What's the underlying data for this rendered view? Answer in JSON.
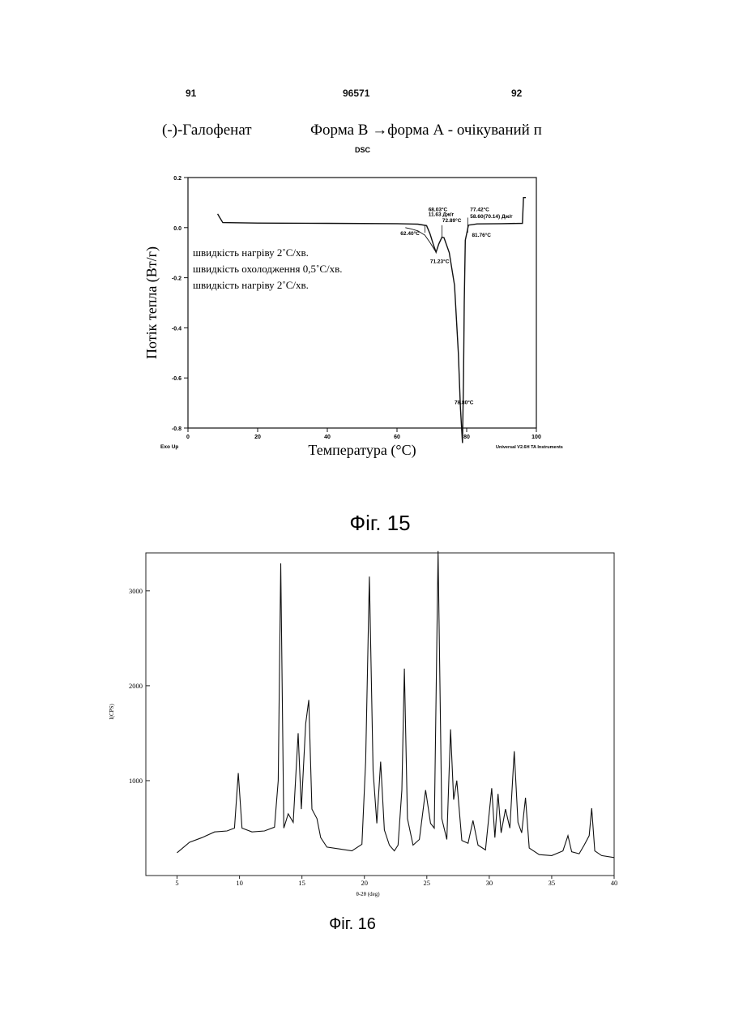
{
  "header": {
    "page_left": "91",
    "patent_number": "96571",
    "page_right": "92"
  },
  "chart_data": [
    {
      "type": "line",
      "title_left": "(-)-Галофенат",
      "title_right": "Форма В →форма А  -  очікуваний п",
      "subtitle": "DSC",
      "xlabel": "Температура (°С)",
      "ylabel": "Потік тепла (Вт/г)",
      "xlim": [
        0,
        100
      ],
      "ylim": [
        -0.8,
        0.2
      ],
      "xticks": [
        "0",
        "20",
        "40",
        "60",
        "80",
        "100"
      ],
      "yticks": [
        "0.2",
        "0.0",
        "-0.2",
        "-0.4",
        "-0.6",
        "-0.8"
      ],
      "notes": [
        "швидкість нагріву  2˚С/хв.",
        "швидкість охолодження  0,5˚С/хв.",
        "швидкість нагріву  2˚С/хв."
      ],
      "corner_left": "Exo Up",
      "corner_right": "Universal V2.6H TA Instruments",
      "annotations": [
        {
          "text": "68.03°C",
          "x": 69.0,
          "y": 0.066
        },
        {
          "text": "11.63 Дж/г",
          "x": 69.0,
          "y": 0.046
        },
        {
          "text": "62.40°C",
          "x": 61.0,
          "y": -0.03
        },
        {
          "text": "72.89°C",
          "x": 73.0,
          "y": 0.022
        },
        {
          "text": "71.23°C",
          "x": 69.5,
          "y": -0.142
        },
        {
          "text": "77.42°C",
          "x": 81.0,
          "y": 0.066
        },
        {
          "text": "58.60(70.14) Дж/г",
          "x": 81.0,
          "y": 0.038
        },
        {
          "text": "81.76°C",
          "x": 81.5,
          "y": -0.036
        },
        {
          "text": "78.80°C",
          "x": 76.5,
          "y": -0.705
        }
      ],
      "series": [
        {
          "values": [
            [
              8.5,
              0.055
            ],
            [
              9,
              0.043
            ],
            [
              10,
              0.02
            ],
            [
              20,
              0.018
            ],
            [
              40,
              0.017
            ],
            [
              60,
              0.016
            ],
            [
              66,
              0.014
            ],
            [
              68.5,
              0.008
            ],
            [
              69.5,
              -0.025
            ],
            [
              70.5,
              -0.07
            ],
            [
              71.2,
              -0.098
            ],
            [
              72,
              -0.065
            ],
            [
              72.9,
              -0.038
            ],
            [
              73.5,
              -0.04
            ],
            [
              75,
              -0.1
            ],
            [
              76.5,
              -0.23
            ],
            [
              77.6,
              -0.5
            ],
            [
              78.2,
              -0.72
            ],
            [
              78.8,
              -0.86
            ],
            [
              79.1,
              -0.6
            ],
            [
              79.3,
              -0.3
            ],
            [
              79.6,
              -0.05
            ],
            [
              80.5,
              0.01
            ],
            [
              83,
              0.015
            ],
            [
              90,
              0.016
            ],
            [
              96,
              0.017
            ],
            [
              96.3,
              0.12
            ],
            [
              97,
              0.12
            ]
          ]
        },
        {
          "values": [
            [
              62.4,
              0.0
            ],
            [
              64,
              -0.005
            ],
            [
              66,
              -0.013
            ],
            [
              68,
              -0.03
            ],
            [
              69.5,
              -0.06
            ],
            [
              71.2,
              -0.098
            ]
          ]
        }
      ],
      "caption": "Фіг. 15"
    },
    {
      "type": "line",
      "xlabel": "θ-2θ (deg)",
      "ylabel": "I(CPS)",
      "xlim": [
        2.5,
        40
      ],
      "ylim": [
        0,
        3400
      ],
      "xticks": [
        "5",
        "10",
        "15",
        "20",
        "25",
        "30",
        "35",
        "40"
      ],
      "yticks": [
        "1000",
        "2000",
        "3000"
      ],
      "series": [
        {
          "values": [
            [
              5,
              240
            ],
            [
              6,
              350
            ],
            [
              7,
              400
            ],
            [
              8,
              460
            ],
            [
              9,
              470
            ],
            [
              9.6,
              500
            ],
            [
              9.9,
              1080
            ],
            [
              10.2,
              500
            ],
            [
              11,
              460
            ],
            [
              12,
              470
            ],
            [
              12.8,
              510
            ],
            [
              13.1,
              1000
            ],
            [
              13.3,
              3290
            ],
            [
              13.55,
              500
            ],
            [
              13.9,
              650
            ],
            [
              14.3,
              560
            ],
            [
              14.7,
              1500
            ],
            [
              14.95,
              700
            ],
            [
              15.3,
              1600
            ],
            [
              15.55,
              1850
            ],
            [
              15.8,
              700
            ],
            [
              16.2,
              600
            ],
            [
              16.5,
              400
            ],
            [
              17,
              300
            ],
            [
              18,
              280
            ],
            [
              19,
              260
            ],
            [
              19.8,
              330
            ],
            [
              20.1,
              1200
            ],
            [
              20.4,
              3150
            ],
            [
              20.7,
              1100
            ],
            [
              21.0,
              550
            ],
            [
              21.3,
              1200
            ],
            [
              21.6,
              480
            ],
            [
              22.0,
              320
            ],
            [
              22.4,
              260
            ],
            [
              22.7,
              320
            ],
            [
              23.0,
              900
            ],
            [
              23.2,
              2180
            ],
            [
              23.45,
              600
            ],
            [
              23.9,
              320
            ],
            [
              24.4,
              380
            ],
            [
              24.9,
              900
            ],
            [
              25.3,
              550
            ],
            [
              25.6,
              500
            ],
            [
              25.9,
              3420
            ],
            [
              26.2,
              600
            ],
            [
              26.6,
              380
            ],
            [
              26.9,
              1540
            ],
            [
              27.15,
              800
            ],
            [
              27.4,
              1000
            ],
            [
              27.8,
              370
            ],
            [
              28.3,
              340
            ],
            [
              28.7,
              580
            ],
            [
              29.1,
              320
            ],
            [
              29.7,
              270
            ],
            [
              30.2,
              920
            ],
            [
              30.45,
              400
            ],
            [
              30.7,
              860
            ],
            [
              30.95,
              450
            ],
            [
              31.3,
              700
            ],
            [
              31.65,
              500
            ],
            [
              32.0,
              1310
            ],
            [
              32.3,
              560
            ],
            [
              32.6,
              450
            ],
            [
              32.9,
              820
            ],
            [
              33.2,
              290
            ],
            [
              34,
              220
            ],
            [
              35,
              210
            ],
            [
              35.9,
              260
            ],
            [
              36.3,
              420
            ],
            [
              36.6,
              250
            ],
            [
              37.2,
              230
            ],
            [
              37.6,
              320
            ],
            [
              38.0,
              420
            ],
            [
              38.2,
              710
            ],
            [
              38.45,
              260
            ],
            [
              39,
              210
            ],
            [
              40,
              190
            ]
          ]
        }
      ],
      "caption": "Фіг. 16"
    }
  ]
}
